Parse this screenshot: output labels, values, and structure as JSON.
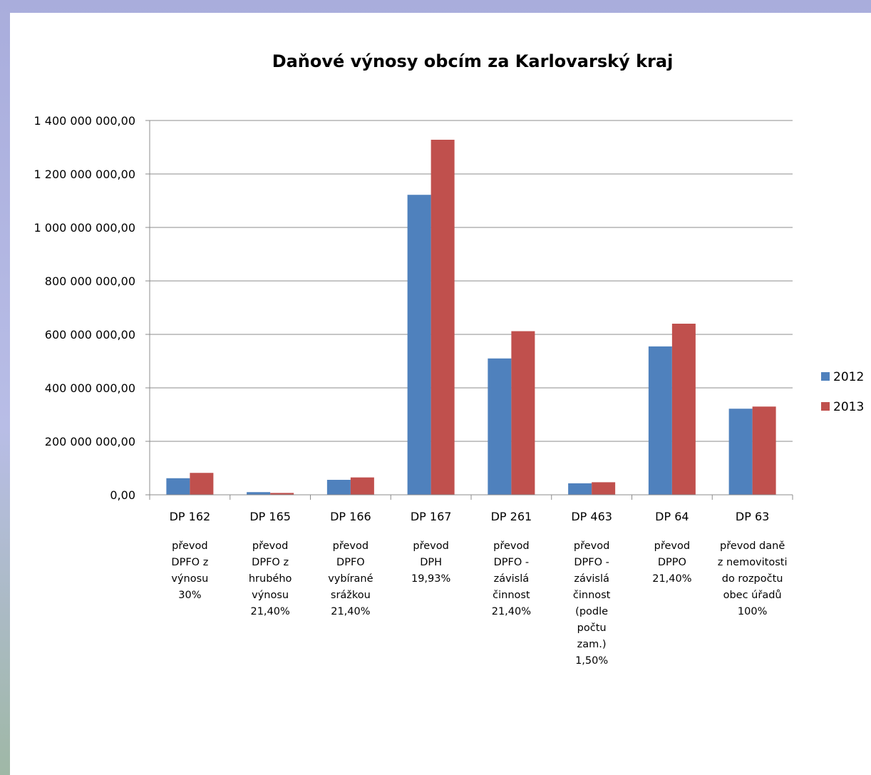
{
  "chart_data": {
    "type": "bar",
    "title": "Daňové výnosy obcím za Karlovarský kraj",
    "xlabel": "",
    "ylabel": "",
    "ylim": [
      0,
      1400000000
    ],
    "yticks": [
      "0,00",
      "200 000 000,00",
      "400 000 000,00",
      "600 000 000,00",
      "800 000 000,00",
      "1 000 000 000,00",
      "1 200 000 000,00",
      "1 400 000 000,00"
    ],
    "grid": true,
    "legend_position": "right",
    "categories": [
      {
        "code": "DP 162",
        "desc": [
          "převod",
          "DPFO z",
          "výnosu",
          "30%"
        ]
      },
      {
        "code": "DP 165",
        "desc": [
          "převod",
          "DPFO z",
          "hrubého",
          "výnosu",
          "21,40%"
        ]
      },
      {
        "code": "DP 166",
        "desc": [
          "převod",
          "DPFO",
          "vybírané",
          "srážkou",
          "21,40%"
        ]
      },
      {
        "code": "DP 167",
        "desc": [
          "převod",
          "DPH",
          "19,93%"
        ]
      },
      {
        "code": "DP 261",
        "desc": [
          "převod",
          "DPFO -",
          "závislá",
          "činnost",
          "21,40%"
        ]
      },
      {
        "code": "DP 463",
        "desc": [
          "převod",
          "DPFO -",
          "závislá",
          "činnost",
          "(podle",
          "počtu",
          "zam.)",
          "1,50%"
        ]
      },
      {
        "code": "DP   64",
        "desc": [
          "převod",
          "DPPO",
          "21,40%"
        ]
      },
      {
        "code": "DP   63",
        "desc": [
          "převod daně",
          "z nemovitosti",
          "do rozpočtu",
          "obec úřadů",
          "100%"
        ]
      }
    ],
    "series": [
      {
        "name": "2012",
        "color": "#4f81bd",
        "values": [
          62000000,
          10000000,
          56000000,
          1122000000,
          510000000,
          43000000,
          555000000,
          322000000
        ]
      },
      {
        "name": "2013",
        "color": "#c0504d",
        "values": [
          82000000,
          7000000,
          65000000,
          1328000000,
          612000000,
          47000000,
          640000000,
          330000000
        ]
      }
    ]
  }
}
